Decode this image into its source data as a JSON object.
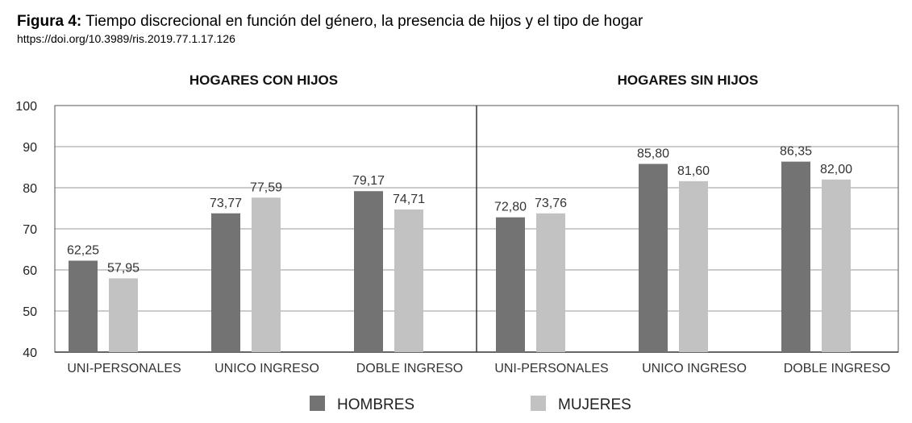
{
  "figure": {
    "label": "Figura 4:",
    "title": "Tiempo discrecional en función del género, la presencia de hijos y el tipo de hogar",
    "doi": "https://doi.org/10.3989/ris.2019.77.1.17.126"
  },
  "chart_data": {
    "type": "bar",
    "panels": [
      {
        "title": "HOGARES CON HIJOS",
        "categories": [
          "UNI-PERSONALES",
          "UNICO INGRESO",
          "DOBLE INGRESO"
        ],
        "series": [
          {
            "name": "HOMBRES",
            "values": [
              62.25,
              73.77,
              79.17
            ],
            "labels": [
              "62,25",
              "73,77",
              "79,17"
            ]
          },
          {
            "name": "MUJERES",
            "values": [
              57.95,
              77.59,
              74.71
            ],
            "labels": [
              "57,95",
              "77,59",
              "74,71"
            ]
          }
        ]
      },
      {
        "title": "HOGARES SIN HIJOS",
        "categories": [
          "UNI-PERSONALES",
          "UNICO INGRESO",
          "DOBLE INGRESO"
        ],
        "series": [
          {
            "name": "HOMBRES",
            "values": [
              72.8,
              85.8,
              86.35
            ],
            "labels": [
              "72,80",
              "85,80",
              "86,35"
            ]
          },
          {
            "name": "MUJERES",
            "values": [
              73.76,
              81.6,
              82.0
            ],
            "labels": [
              "73,76",
              "81,60",
              "82,00"
            ]
          }
        ]
      }
    ],
    "ylim": [
      40,
      100
    ],
    "yticks": [
      40,
      50,
      60,
      70,
      80,
      90,
      100
    ],
    "grid": true,
    "legend_position": "bottom",
    "legend": [
      "HOMBRES",
      "MUJERES"
    ],
    "colors": {
      "HOMBRES": "#737373",
      "MUJERES": "#c2c2c2"
    }
  }
}
